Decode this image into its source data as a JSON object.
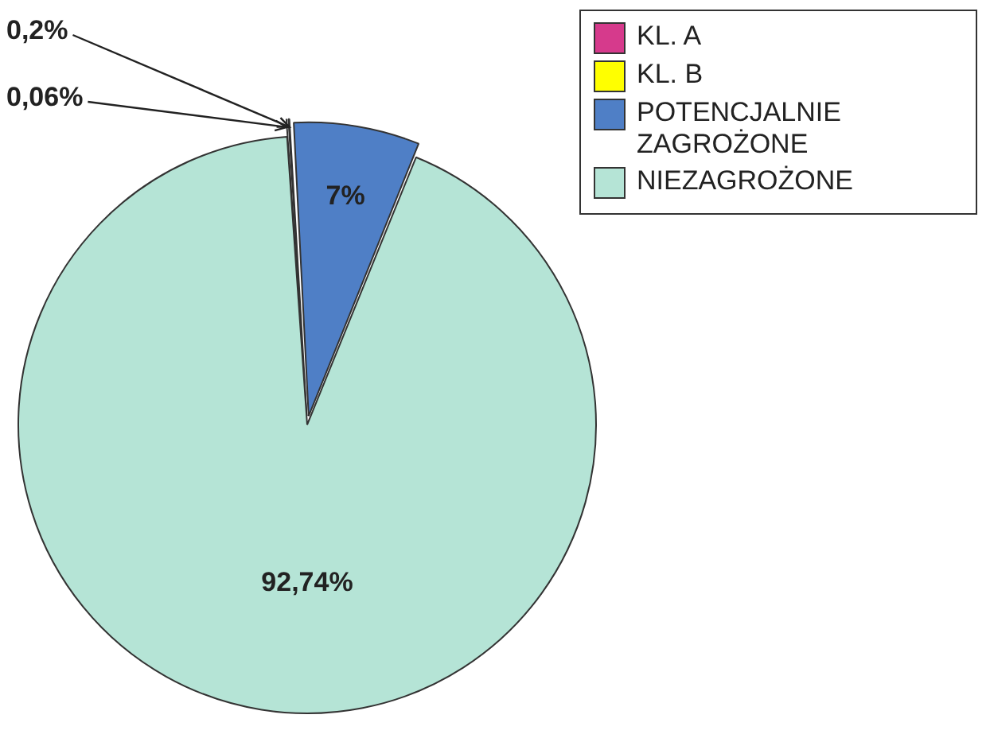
{
  "chart_data": {
    "type": "pie",
    "categories": [
      "KL. A",
      "KL. B",
      "POTENCJALNIE ZAGROŻONE",
      "NIEZAGROŻONE"
    ],
    "values": [
      0.06,
      0.2,
      7,
      92.74
    ],
    "value_labels": [
      "0,06%",
      "0,2%",
      "7%",
      "92,74%"
    ],
    "colors": [
      "#d63a8c",
      "#ffff00",
      "#4f7fc6",
      "#b5e4d6"
    ],
    "legend": "top right"
  }
}
